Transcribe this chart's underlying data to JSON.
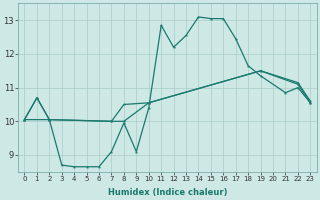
{
  "xlabel": "Humidex (Indice chaleur)",
  "ylabel": "",
  "xlim": [
    -0.5,
    23.5
  ],
  "ylim": [
    8.5,
    13.5
  ],
  "background_color": "#cde8e5",
  "grid_color": "#a8ccc9",
  "line_color": "#1a7a6e",
  "line1_x": [
    0,
    1,
    2,
    3,
    4,
    5,
    6,
    7,
    8,
    9,
    10,
    11,
    12,
    13,
    14,
    15,
    16,
    17,
    18,
    19,
    21,
    22,
    23
  ],
  "line1_y": [
    10.05,
    10.7,
    10.05,
    8.7,
    8.65,
    8.65,
    8.65,
    9.1,
    9.95,
    9.1,
    10.4,
    12.85,
    12.2,
    12.55,
    13.1,
    13.05,
    13.05,
    12.45,
    11.65,
    11.35,
    10.85,
    11.0,
    10.55
  ],
  "line2_x": [
    0,
    2,
    7,
    8,
    10,
    19,
    22,
    23
  ],
  "line2_y": [
    10.05,
    10.05,
    10.0,
    10.0,
    10.55,
    11.5,
    11.1,
    10.55
  ],
  "line3_x": [
    0,
    1,
    2,
    7,
    8,
    10,
    19,
    22,
    23
  ],
  "line3_y": [
    10.05,
    10.7,
    10.05,
    10.0,
    10.5,
    10.55,
    11.5,
    11.15,
    10.6
  ],
  "yticks": [
    9,
    10,
    11,
    12,
    13
  ],
  "xticks": [
    0,
    1,
    2,
    3,
    4,
    5,
    6,
    7,
    8,
    9,
    10,
    11,
    12,
    13,
    14,
    15,
    16,
    17,
    18,
    19,
    20,
    21,
    22,
    23
  ]
}
